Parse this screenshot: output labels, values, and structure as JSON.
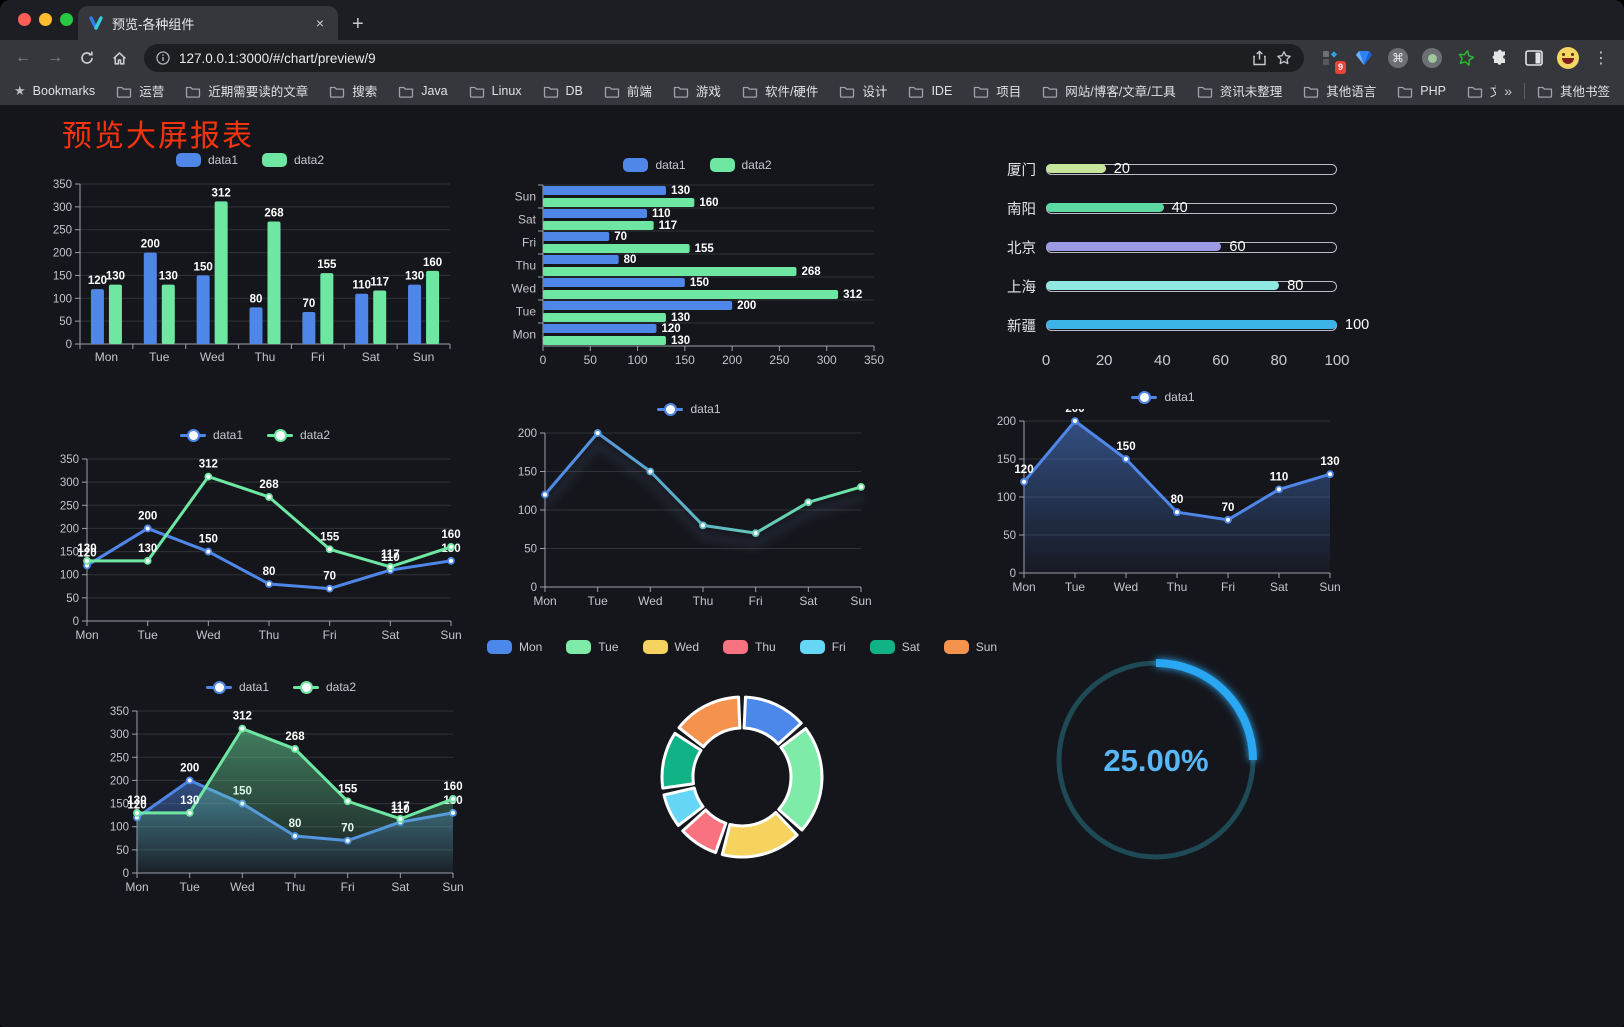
{
  "browser": {
    "tab": {
      "title": "预览-各种组件",
      "close_glyph": "×",
      "new_tab_glyph": "+"
    },
    "url": "127.0.0.1:3000/#/chart/preview/9",
    "bookmarks_label": "Bookmarks",
    "bookmarks": [
      "运营",
      "近期需要读的文章",
      "搜索",
      "Java",
      "Linux",
      "DB",
      "前端",
      "游戏",
      "软件/硬件",
      "设计",
      "IDE",
      "项目",
      "网站/博客/文章/工具",
      "资讯未整理",
      "其他语言",
      "PHP",
      "文件服务器"
    ],
    "overflow_glyph": "»",
    "other_bookmarks": "其他书签",
    "extension_badge": "9"
  },
  "page": {
    "title": "预览大屏报表",
    "title_color": "#f5340e"
  },
  "chart_data": [
    {
      "type": "bar",
      "categories": [
        "Mon",
        "Tue",
        "Wed",
        "Thu",
        "Fri",
        "Sat",
        "Sun"
      ],
      "series": [
        {
          "name": "data1",
          "color": "#4f87e8",
          "values": [
            120,
            200,
            150,
            80,
            70,
            110,
            130
          ]
        },
        {
          "name": "data2",
          "color": "#6ee7a2",
          "values": [
            130,
            130,
            312,
            268,
            155,
            117,
            160
          ]
        }
      ],
      "ylim": [
        0,
        350
      ],
      "ytick": 50,
      "legend_position": "top",
      "grid": true
    },
    {
      "type": "bar-horizontal",
      "categories": [
        "Mon",
        "Tue",
        "Wed",
        "Thu",
        "Fri",
        "Sat",
        "Sun"
      ],
      "series": [
        {
          "name": "data1",
          "color": "#4f87e8",
          "values": [
            120,
            200,
            150,
            80,
            70,
            110,
            130
          ]
        },
        {
          "name": "data2",
          "color": "#6ee7a2",
          "values": [
            130,
            130,
            312,
            268,
            155,
            117,
            160
          ]
        }
      ],
      "xlim": [
        0,
        350
      ],
      "xtick": 50,
      "legend_position": "top",
      "note": "categories displayed Sun at top to Mon at bottom"
    },
    {
      "type": "progress-bars",
      "rows": [
        {
          "label": "厦门",
          "value": 20,
          "color": "#c7e59a"
        },
        {
          "label": "南阳",
          "value": 40,
          "color": "#5cd9a2"
        },
        {
          "label": "北京",
          "value": 60,
          "color": "#9b9ae2"
        },
        {
          "label": "上海",
          "value": 80,
          "color": "#90e8e2"
        },
        {
          "label": "新疆",
          "value": 100,
          "color": "#3db4e8"
        }
      ],
      "xlim": [
        0,
        100
      ],
      "xticks": [
        0,
        20,
        40,
        60,
        80,
        100
      ]
    },
    {
      "type": "line",
      "categories": [
        "Mon",
        "Tue",
        "Wed",
        "Thu",
        "Fri",
        "Sat",
        "Sun"
      ],
      "series": [
        {
          "name": "data1",
          "color": "#4f87e8",
          "values": [
            120,
            200,
            150,
            80,
            70,
            110,
            130
          ]
        },
        {
          "name": "data2",
          "color": "#6ee7a2",
          "values": [
            130,
            130,
            312,
            268,
            155,
            117,
            160
          ]
        }
      ],
      "ylim": [
        0,
        350
      ],
      "ytick": 50,
      "labels": true,
      "legend_position": "top"
    },
    {
      "type": "line",
      "categories": [
        "Mon",
        "Tue",
        "Wed",
        "Thu",
        "Fri",
        "Sat",
        "Sun"
      ],
      "series": [
        {
          "name": "data1",
          "gradient": [
            "#4f87e8",
            "#6ee7a2"
          ],
          "values": [
            120,
            200,
            150,
            80,
            70,
            110,
            130
          ]
        }
      ],
      "ylim": [
        0,
        200
      ],
      "ytick": 50,
      "labels": false,
      "shadow": true,
      "legend_position": "top"
    },
    {
      "type": "line",
      "categories": [
        "Mon",
        "Tue",
        "Wed",
        "Thu",
        "Fri",
        "Sat",
        "Sun"
      ],
      "series": [
        {
          "name": "data1",
          "color": "#4f87e8",
          "area": true,
          "values": [
            120,
            200,
            150,
            80,
            70,
            110,
            130
          ]
        }
      ],
      "ylim": [
        0,
        200
      ],
      "ytick": 50,
      "labels": true,
      "legend_position": "top"
    },
    {
      "type": "line",
      "categories": [
        "Mon",
        "Tue",
        "Wed",
        "Thu",
        "Fri",
        "Sat",
        "Sun"
      ],
      "series": [
        {
          "name": "data1",
          "color": "#4f87e8",
          "area": true,
          "values": [
            120,
            200,
            150,
            80,
            70,
            110,
            130
          ]
        },
        {
          "name": "data2",
          "color": "#6ee7a2",
          "area": true,
          "values": [
            130,
            130,
            312,
            268,
            155,
            117,
            160
          ]
        }
      ],
      "ylim": [
        0,
        350
      ],
      "ytick": 50,
      "labels": true,
      "legend_position": "top"
    },
    {
      "type": "pie",
      "subtype": "doughnut",
      "categories": [
        "Mon",
        "Tue",
        "Wed",
        "Thu",
        "Fri",
        "Sat",
        "Sun"
      ],
      "values": [
        120,
        200,
        150,
        80,
        70,
        110,
        130
      ],
      "colors": [
        "#4c87ea",
        "#7feba8",
        "#f5d35e",
        "#f8737f",
        "#66d6f7",
        "#12b287",
        "#f5934e"
      ],
      "legend_position": "top"
    },
    {
      "type": "gauge",
      "value": 25,
      "label": "25.00%",
      "progress_color": "#29a7f3",
      "track_color": "#1d4a55",
      "text_color": "#58b6f6"
    }
  ]
}
